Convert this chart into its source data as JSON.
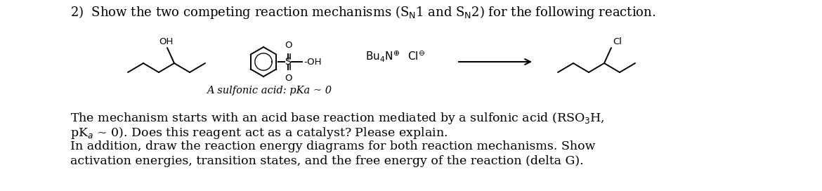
{
  "title": "2)  Show the two competing reaction mechanisms (S$_{\\mathrm{N}}$1 and S$_{\\mathrm{N}}$2) for the following reaction.",
  "caption": "A sulfonic acid: pKa ~ 0",
  "reagents": "Bu$_4$N$^{\\oplus}$  Cl$^{\\ominus}$",
  "body_text": [
    "The mechanism starts with an acid base reaction mediated by a sulfonic acid (RSO$_3$H,",
    "pK$_a$ ~ 0). Does this reagent act as a catalyst? Please explain.",
    "In addition, draw the reaction energy diagrams for both reaction mechanisms. Show",
    "activation energies, transition states, and the free energy of the reaction (delta G)."
  ],
  "bg_color": "#ffffff",
  "text_color": "#000000",
  "title_fontsize": 13.0,
  "body_fontsize": 12.5,
  "caption_fontsize": 10.5,
  "lw": 1.4
}
